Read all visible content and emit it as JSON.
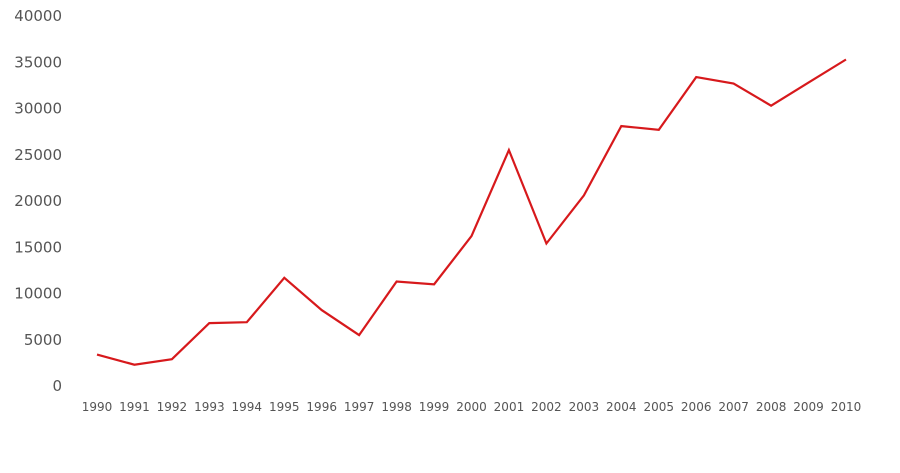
{
  "chart_data": {
    "type": "line",
    "title": "",
    "xlabel": "",
    "ylabel": "",
    "grid": false,
    "legend": "none",
    "ylim": [
      0,
      40000
    ],
    "yticks": [
      "40000",
      "35000",
      "30000",
      "25000",
      "20000",
      "15000",
      "10000",
      "5000",
      "0"
    ],
    "x": [
      "1990",
      "1991",
      "1992",
      "1993",
      "1994",
      "1995",
      "1996",
      "1997",
      "1998",
      "1999",
      "2000",
      "2001",
      "2002",
      "2003",
      "2004",
      "2005",
      "2006",
      "2007",
      "2008",
      "2009",
      "2010"
    ],
    "series": [
      {
        "color": "#d7191c",
        "values": [
          3400,
          2300,
          2900,
          6800,
          6900,
          11700,
          8200,
          5500,
          11300,
          11000,
          16200,
          25500,
          15400,
          20600,
          28100,
          27700,
          33400,
          32700,
          30300,
          32800,
          35300
        ]
      }
    ]
  }
}
